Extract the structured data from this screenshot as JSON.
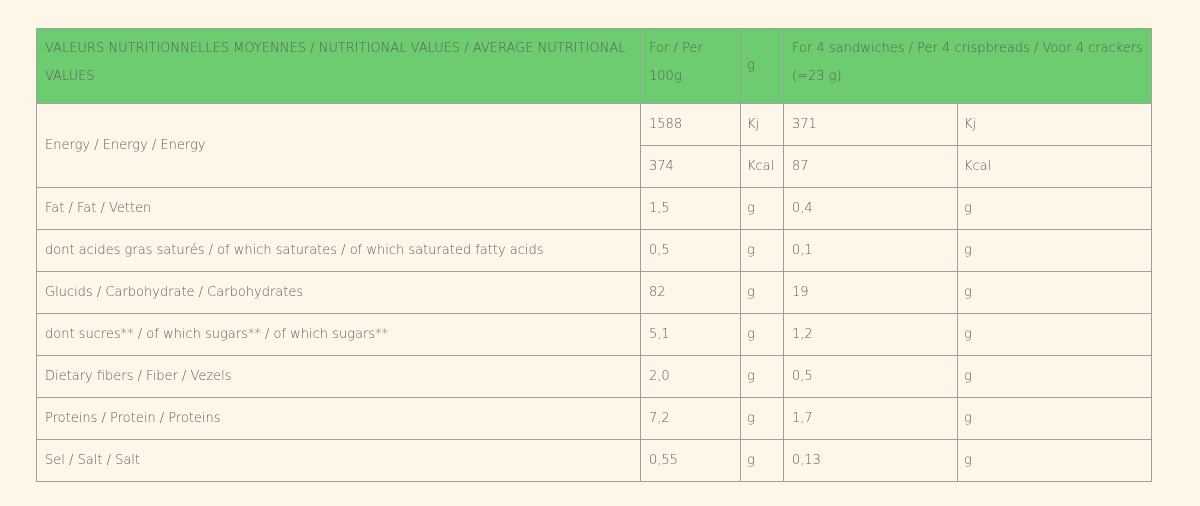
{
  "table": {
    "header": [
      "VALEURS NUTRITIONNELLES MOYENNES / NUTRITIONAL VALUES / AVERAGE NUTRITIONAL VALUES",
      "For / Per 100g",
      "g",
      "For 4 sandwiches / Per 4 crispbreads / Voor 4 crackers (=23 g)"
    ],
    "rows": [
      {
        "label": "Energy / Energy / Energy",
        "lines": [
          [
            "1588",
            "Kj",
            "371",
            "Kj"
          ],
          [
            "374",
            "Kcal",
            "87",
            "Kcal"
          ]
        ]
      },
      {
        "label": "Fat / Fat / Vetten",
        "lines": [
          [
            "1,5",
            "g",
            "0,4",
            "g"
          ]
        ]
      },
      {
        "label": "dont acides gras saturés / of which saturates / of which saturated fatty acids",
        "lines": [
          [
            "0,5",
            "g",
            "0,1",
            "g"
          ]
        ]
      },
      {
        "label": "Glucids / Carbohydrate / Carbohydrates",
        "lines": [
          [
            "82",
            "g",
            "19",
            "g"
          ]
        ]
      },
      {
        "label": "dont sucres** / of which sugars** / of which sugars**",
        "lines": [
          [
            "5,1",
            "g",
            "1,2",
            "g"
          ]
        ]
      },
      {
        "label": "Dietary fibers / Fiber / Vezels",
        "lines": [
          [
            "2,0",
            "g",
            "0,5",
            "g"
          ]
        ]
      },
      {
        "label": "Proteins / Protein / Proteins",
        "lines": [
          [
            "7,2",
            "g",
            "1,7",
            "g"
          ]
        ]
      },
      {
        "label": "Sel / Salt / Salt",
        "lines": [
          [
            "0,55",
            "g",
            "0,13",
            "g"
          ]
        ]
      }
    ]
  }
}
